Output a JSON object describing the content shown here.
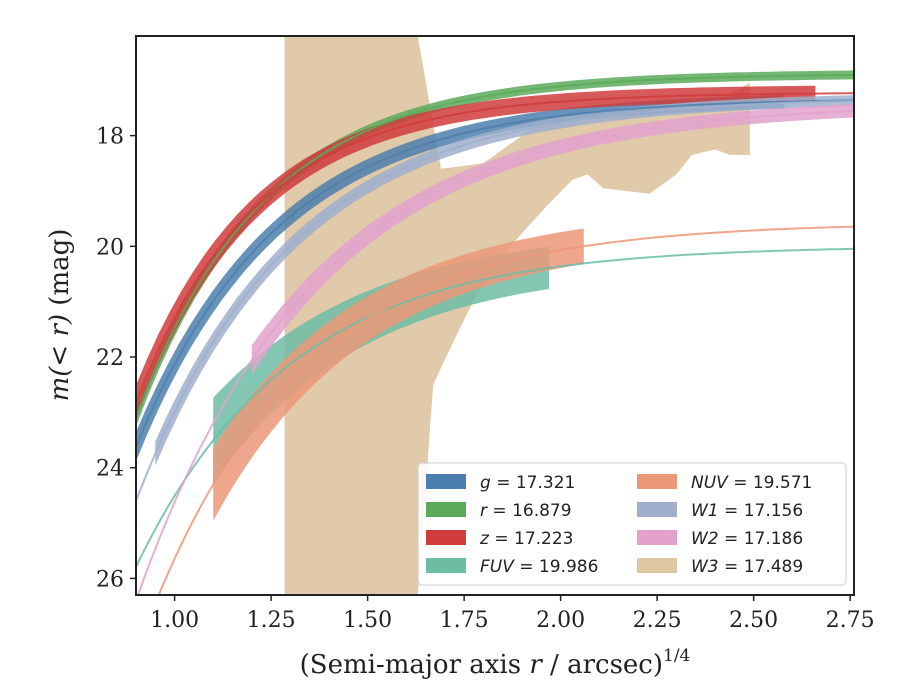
{
  "chart_data": {
    "type": "line",
    "title": "",
    "xlabel": "(Semi-major axis r / arcsec)",
    "xlabel_prefix": "(Semi-major axis ",
    "xlabel_var": "r",
    "xlabel_mid": " / arcsec)",
    "xlabel_exp": "1/4",
    "ylabel": "m(< r) (mag)",
    "ylabel_main": "m(< r)",
    "ylabel_unit": " (mag)",
    "xlim": [
      0.9,
      2.76
    ],
    "ylim": [
      16.2,
      26.3
    ],
    "y_inverted": true,
    "grid": false,
    "legend_position": "bottom-right",
    "xticks": [
      "1.00",
      "1.25",
      "1.50",
      "1.75",
      "2.00",
      "2.25",
      "2.50",
      "2.75"
    ],
    "yticks": [
      "18",
      "20",
      "22",
      "24",
      "26"
    ],
    "series": [
      {
        "name": "g = 17.321",
        "legend_var": "g",
        "legend_value": "17.321",
        "color": "#4c7fad",
        "model": {
          "A": 17.32,
          "B": 6.3,
          "C": 2.7
        },
        "line_range": [
          0.9,
          2.76
        ],
        "band_range": [
          0.9,
          2.58
        ],
        "band_width": 0.12
      },
      {
        "name": "r = 16.879",
        "legend_var": "r",
        "legend_value": "16.879",
        "color": "#5aaa5a",
        "model": {
          "A": 16.88,
          "B": 6.2,
          "C": 3.0
        },
        "line_range": [
          0.9,
          2.76
        ],
        "band_range": [
          0.9,
          2.76
        ],
        "band_width": 0.08
      },
      {
        "name": "z = 17.223",
        "legend_var": "z",
        "legend_value": "17.223",
        "color": "#d03c3c",
        "model": {
          "A": 17.22,
          "B": 5.6,
          "C": 3.2
        },
        "line_range": [
          0.9,
          2.76
        ],
        "band_range": [
          0.9,
          2.66
        ],
        "band_width": 0.14
      },
      {
        "name": "FUV = 19.986",
        "legend_var": "FUV",
        "legend_value": "19.986",
        "color": "#6dbda5",
        "model": {
          "A": 19.99,
          "B": 5.8,
          "C": 2.5
        },
        "line_range": [
          0.9,
          2.76
        ],
        "band_range": [
          1.1,
          1.97
        ],
        "band_width": 0.35
      },
      {
        "name": "NUV = 19.571",
        "legend_var": "NUV",
        "legend_value": "19.571",
        "color": "#eb9878",
        "model": {
          "A": 19.57,
          "B": 7.8,
          "C": 2.5
        },
        "line_range": [
          0.9,
          2.76
        ],
        "band_range": [
          1.1,
          2.06
        ],
        "band_width": 0.3
      },
      {
        "name": "W1 = 17.156",
        "legend_var": "W1",
        "legend_value": "17.156",
        "color": "#9fafcc",
        "model": {
          "A": 17.3,
          "B": 7.3,
          "C": 2.5
        },
        "line_range": [
          0.9,
          2.76
        ],
        "band_range": [
          0.95,
          2.76
        ],
        "band_width": 0.1
      },
      {
        "name": "W2 = 17.186",
        "legend_var": "W2",
        "legend_value": "17.186",
        "color": "#e2a2cc",
        "model": {
          "A": 17.4,
          "B": 9.0,
          "C": 2.2
        },
        "line_range": [
          0.9,
          2.76
        ],
        "band_range": [
          1.2,
          2.76
        ],
        "band_width": 0.12
      },
      {
        "name": "W3 = 17.489",
        "legend_var": "W3",
        "legend_value": "17.489",
        "color": "#dfc7a4",
        "band_upper": [
          [
            1.285,
            16.2
          ],
          [
            1.63,
            16.2
          ],
          [
            1.69,
            18.6
          ],
          [
            1.8,
            18.5
          ],
          [
            1.9,
            18.0
          ],
          [
            1.95,
            17.8
          ],
          [
            2.05,
            17.7
          ],
          [
            2.15,
            17.6
          ],
          [
            2.25,
            17.55
          ],
          [
            2.35,
            17.45
          ],
          [
            2.45,
            17.2
          ],
          [
            2.49,
            17.05
          ]
        ],
        "band_lower": [
          [
            2.49,
            18.35
          ],
          [
            2.44,
            18.35
          ],
          [
            2.4,
            18.25
          ],
          [
            2.34,
            18.35
          ],
          [
            2.3,
            18.7
          ],
          [
            2.23,
            19.05
          ],
          [
            2.17,
            19.0
          ],
          [
            2.11,
            18.95
          ],
          [
            2.07,
            18.7
          ],
          [
            2.03,
            18.8
          ],
          [
            1.96,
            19.3
          ],
          [
            1.87,
            20.0
          ],
          [
            1.78,
            20.9
          ],
          [
            1.71,
            21.9
          ],
          [
            1.67,
            22.5
          ],
          [
            1.63,
            26.3
          ],
          [
            1.285,
            26.3
          ]
        ]
      }
    ]
  }
}
